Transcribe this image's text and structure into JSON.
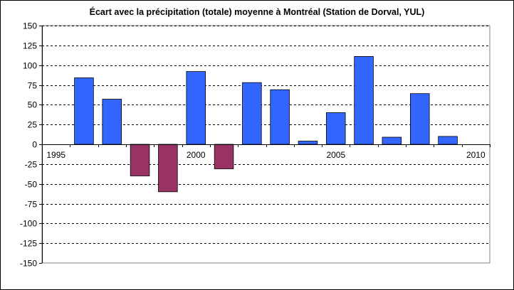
{
  "chart_data": {
    "type": "bar",
    "title": "Écart avec la précipitation (totale) moyenne à Montréal (Station de Dorval, YUL)",
    "xlabel": "",
    "ylabel": "",
    "x": [
      1996,
      1997,
      1998,
      1999,
      2000,
      2001,
      2002,
      2003,
      2004,
      2005,
      2006,
      2007,
      2008,
      2009
    ],
    "values": [
      84,
      57,
      -40,
      -60,
      92,
      -31,
      78,
      69,
      4,
      40,
      111,
      9,
      64,
      10
    ],
    "xlim": [
      1995,
      2010
    ],
    "ylim": [
      -150,
      150
    ],
    "y_ticks": [
      150,
      125,
      100,
      75,
      50,
      25,
      0,
      -25,
      -50,
      -75,
      -100,
      -125,
      -150
    ],
    "y_tick_labels": [
      "150",
      "125",
      "100",
      "75",
      "50",
      "25",
      "0",
      "-25",
      "-50",
      "-75",
      "-100",
      "-125",
      "-150"
    ],
    "x_tick_labels": [
      "1995",
      "2000",
      "2005",
      "2010"
    ],
    "x_tick_values": [
      1995,
      2000,
      2005,
      2010
    ],
    "grid": "horizontal dashed",
    "legend": "none",
    "colors": {
      "positive": "#3366ff",
      "negative": "#993366",
      "bar_edge": "#000000",
      "grid": "#000000",
      "plot_border": "#808080"
    }
  }
}
